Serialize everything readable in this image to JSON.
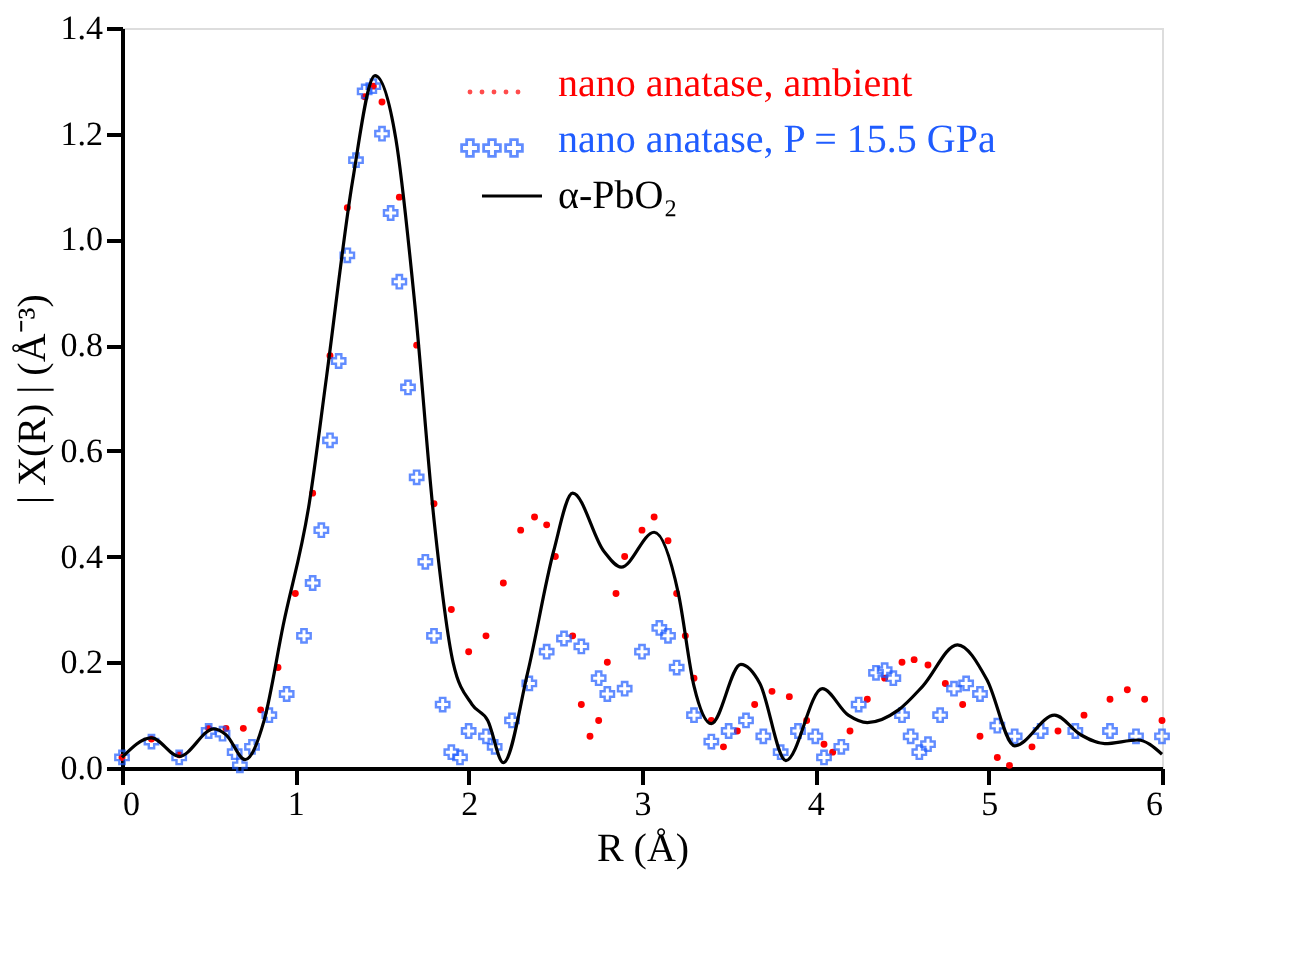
{
  "chart_data": {
    "type": "line",
    "xlabel": "R (Å)",
    "ylabel": "| X(R) | (Å⁻³)",
    "xlim": [
      0,
      6
    ],
    "xticks": [
      0,
      1,
      2,
      3,
      4,
      5,
      6
    ],
    "ylim": [
      0,
      1.4
    ],
    "yticks": [
      {
        "value": 0,
        "label": "0.0"
      },
      0.2,
      0.4,
      0.6,
      0.8,
      {
        "value": 1,
        "label": "1.0"
      },
      1.2,
      1.4
    ],
    "grid": false,
    "legend": "top right",
    "series": [
      {
        "name": "nano anatase, ambient",
        "color": "#ff0000",
        "type": "scatter",
        "marker": "circle",
        "x": [
          0.0,
          0.17,
          0.33,
          0.5,
          0.6,
          0.7,
          0.8,
          0.9,
          1.0,
          1.1,
          1.2,
          1.3,
          1.4,
          1.45,
          1.5,
          1.6,
          1.7,
          1.8,
          1.9,
          2.0,
          2.1,
          2.2,
          2.3,
          2.38,
          2.45,
          2.5,
          2.6,
          2.65,
          2.7,
          2.75,
          2.8,
          2.85,
          2.9,
          3.0,
          3.07,
          3.15,
          3.2,
          3.25,
          3.3,
          3.4,
          3.47,
          3.55,
          3.65,
          3.75,
          3.85,
          3.95,
          4.05,
          4.1,
          4.2,
          4.3,
          4.4,
          4.5,
          4.57,
          4.65,
          4.75,
          4.85,
          4.95,
          5.05,
          5.12,
          5.25,
          5.4,
          5.55,
          5.7,
          5.8,
          5.9,
          6.0
        ],
        "values": [
          0.02,
          0.055,
          0.025,
          0.075,
          0.075,
          0.075,
          0.11,
          0.19,
          0.33,
          0.52,
          0.78,
          1.06,
          1.27,
          1.29,
          1.26,
          1.08,
          0.8,
          0.5,
          0.3,
          0.22,
          0.25,
          0.35,
          0.45,
          0.475,
          0.46,
          0.4,
          0.25,
          0.12,
          0.06,
          0.09,
          0.2,
          0.33,
          0.4,
          0.45,
          0.475,
          0.43,
          0.33,
          0.25,
          0.17,
          0.09,
          0.04,
          0.07,
          0.12,
          0.145,
          0.135,
          0.09,
          0.045,
          0.03,
          0.07,
          0.13,
          0.17,
          0.2,
          0.205,
          0.195,
          0.16,
          0.12,
          0.06,
          0.02,
          0.005,
          0.04,
          0.07,
          0.1,
          0.13,
          0.148,
          0.13,
          0.09
        ]
      },
      {
        "name": "nano anatase, P = 15.5 GPa",
        "color": "#1f5cff",
        "type": "scatter",
        "marker": "cross",
        "x": [
          0.0,
          0.17,
          0.33,
          0.5,
          0.58,
          0.65,
          0.68,
          0.75,
          0.85,
          0.95,
          1.05,
          1.1,
          1.15,
          1.2,
          1.25,
          1.3,
          1.35,
          1.4,
          1.45,
          1.5,
          1.55,
          1.6,
          1.65,
          1.7,
          1.75,
          1.8,
          1.85,
          1.9,
          1.95,
          2.0,
          2.1,
          2.15,
          2.25,
          2.35,
          2.45,
          2.55,
          2.65,
          2.75,
          2.8,
          2.9,
          3.0,
          3.1,
          3.15,
          3.2,
          3.3,
          3.4,
          3.5,
          3.6,
          3.7,
          3.8,
          3.9,
          4.0,
          4.05,
          4.15,
          4.25,
          4.35,
          4.4,
          4.45,
          4.5,
          4.55,
          4.6,
          4.65,
          4.72,
          4.8,
          4.87,
          4.95,
          5.05,
          5.15,
          5.3,
          5.5,
          5.7,
          5.85,
          6.0
        ],
        "values": [
          0.02,
          0.05,
          0.02,
          0.07,
          0.065,
          0.03,
          0.005,
          0.04,
          0.1,
          0.14,
          0.25,
          0.35,
          0.45,
          0.62,
          0.77,
          0.97,
          1.15,
          1.28,
          1.29,
          1.2,
          1.05,
          0.92,
          0.72,
          0.55,
          0.39,
          0.25,
          0.12,
          0.03,
          0.02,
          0.07,
          0.06,
          0.04,
          0.09,
          0.16,
          0.22,
          0.245,
          0.23,
          0.17,
          0.14,
          0.15,
          0.22,
          0.265,
          0.25,
          0.19,
          0.1,
          0.05,
          0.07,
          0.09,
          0.06,
          0.03,
          0.07,
          0.06,
          0.02,
          0.04,
          0.12,
          0.18,
          0.185,
          0.17,
          0.1,
          0.06,
          0.03,
          0.045,
          0.1,
          0.15,
          0.16,
          0.14,
          0.08,
          0.06,
          0.07,
          0.07,
          0.07,
          0.06,
          0.06
        ]
      },
      {
        "name": "α-PbO₂",
        "color": "#000000",
        "type": "line",
        "marker": "none",
        "line_style": "solid",
        "x": [
          0.0,
          0.17,
          0.33,
          0.53,
          0.6,
          0.71,
          0.82,
          0.93,
          1.08,
          1.18,
          1.33,
          1.46,
          1.58,
          1.69,
          1.8,
          1.91,
          2.02,
          2.11,
          2.2,
          2.34,
          2.49,
          2.6,
          2.78,
          2.88,
          3.07,
          3.21,
          3.3,
          3.4,
          3.57,
          3.68,
          3.83,
          4.04,
          4.19,
          4.3,
          4.48,
          4.62,
          4.82,
          4.99,
          5.15,
          5.38,
          5.53,
          5.67,
          5.86,
          6.0
        ],
        "values": [
          0.02,
          0.057,
          0.022,
          0.074,
          0.063,
          0.016,
          0.09,
          0.27,
          0.5,
          0.74,
          1.11,
          1.31,
          1.19,
          0.875,
          0.47,
          0.2,
          0.12,
          0.09,
          0.01,
          0.18,
          0.41,
          0.52,
          0.41,
          0.38,
          0.446,
          0.33,
          0.155,
          0.084,
          0.196,
          0.16,
          0.014,
          0.15,
          0.1,
          0.086,
          0.11,
          0.155,
          0.233,
          0.167,
          0.042,
          0.1,
          0.063,
          0.046,
          0.053,
          0.026
        ]
      }
    ]
  }
}
